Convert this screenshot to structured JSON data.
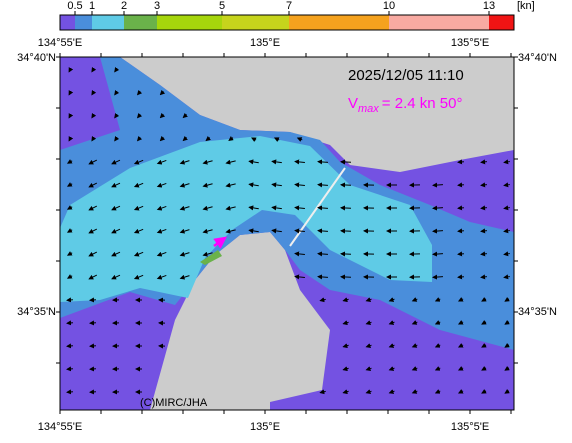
{
  "colorbar": {
    "labels": [
      "0.5",
      "1",
      "2",
      "3",
      "5",
      "7",
      "10",
      "13"
    ],
    "unit": "[kn]",
    "colors": [
      "#7452e2",
      "#4a8edb",
      "#5fcbe6",
      "#6ab24a",
      "#a6d60c",
      "#c6d41c",
      "#f5a21e",
      "#f8aaa2",
      "#f01414"
    ]
  },
  "axes": {
    "top": [
      "134°55'E",
      "135°E",
      "135°5'E"
    ],
    "bottom": [
      "134°55'E",
      "135°E",
      "135°5'E"
    ],
    "left": [
      "34°40'N",
      "34°35'N"
    ],
    "right": [
      "34°40'N",
      "34°35'N"
    ]
  },
  "timestamp": "2025/12/05 11:10",
  "vmax": {
    "symbol": "V",
    "subscript": "max",
    "text": "= 2.4 kn 50°"
  },
  "credit": "(C)MIRC/JHA"
}
